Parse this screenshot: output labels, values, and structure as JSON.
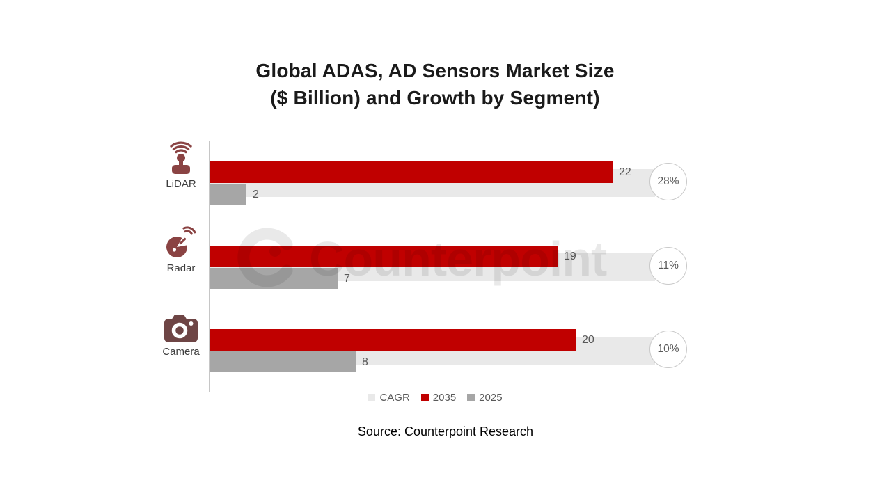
{
  "title": {
    "line1": "Global ADAS, AD Sensors Market Size",
    "line2": "($ Billion) and Growth by Segment)"
  },
  "watermark_text": "Counterpoint",
  "source": "Source: Counterpoint Research",
  "legend": {
    "items": [
      {
        "label": "CAGR",
        "color": "#E9E9E9"
      },
      {
        "label": "2035",
        "color": "#C00000"
      },
      {
        "label": "2025",
        "color": "#A6A6A6"
      }
    ]
  },
  "chart_data": {
    "type": "bar",
    "orientation": "horizontal",
    "title": "Global ADAS, AD Sensors Market Size ($ Billion) and Growth by Segment)",
    "value_unit": "$ Billion",
    "categories": [
      "LiDAR",
      "Radar",
      "Camera"
    ],
    "category_icons": [
      "lidar-sensor-icon",
      "radar-dish-icon",
      "camera-icon"
    ],
    "series": [
      {
        "name": "2035",
        "values": [
          22,
          19,
          20
        ]
      },
      {
        "name": "2025",
        "values": [
          2,
          7,
          8
        ]
      }
    ],
    "cagr_labels": [
      "28%",
      "11%",
      "10%"
    ],
    "xlim": [
      0,
      24.3
    ],
    "grid": false,
    "legend_position": "bottom"
  },
  "colors": {
    "bar_2035": "#C00000",
    "bar_2025": "#A6A6A6",
    "cagr_track": "#E9E9E9",
    "circle_border": "#C9C9C9",
    "value_label": "#595959",
    "legend_text": "#595959",
    "category_label": "#3d3d3d",
    "axis_line": "#C6C6C6",
    "icon_maroon": "#8A4343",
    "icon_camera": "#6E4545",
    "watermark": "rgba(0,0,0,0.085)"
  }
}
